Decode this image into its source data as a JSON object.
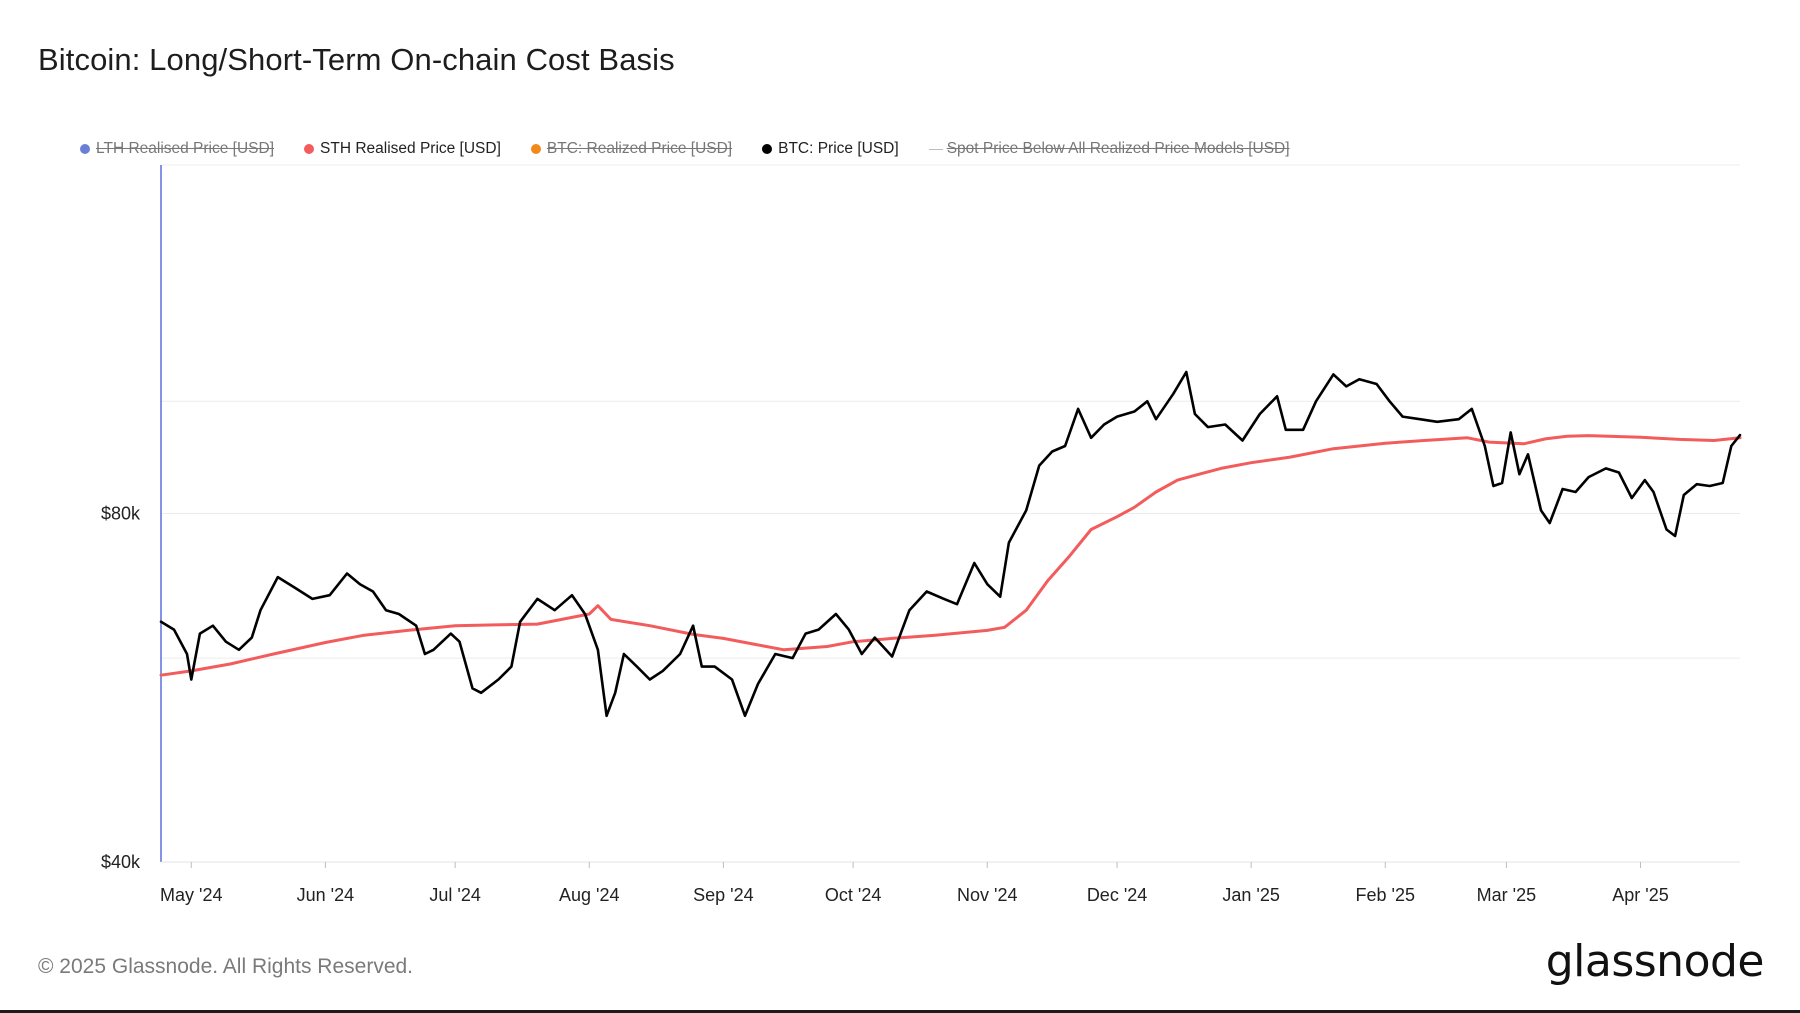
{
  "title": "Bitcoin: Long/Short-Term On-chain Cost Basis",
  "legend": [
    {
      "label": "LTH Realised Price [USD]",
      "color": "#6b7fd7",
      "marker": "dot",
      "hidden": true
    },
    {
      "label": "STH Realised Price [USD]",
      "color": "#f25c5c",
      "marker": "dot",
      "hidden": false
    },
    {
      "label": "BTC: Realized Price [USD]",
      "color": "#f08a18",
      "marker": "dot",
      "hidden": true
    },
    {
      "label": "BTC: Price [USD]",
      "color": "#000000",
      "marker": "dot",
      "hidden": false
    },
    {
      "label": "Spot Price Below All Realized Price Models [USD]",
      "color": "#bdbdbd",
      "marker": "line",
      "hidden": true
    }
  ],
  "footer": "© 2025 Glassnode. All Rights Reserved.",
  "brand": "glassnode",
  "chart_data": {
    "type": "line",
    "title": "Bitcoin: Long/Short-Term On-chain Cost Basis",
    "yscale": "log",
    "ylim": [
      40000,
      160000
    ],
    "y_ticks": [
      {
        "value": 40000,
        "label": "$40k"
      },
      {
        "value": 80000,
        "label": "$80k"
      }
    ],
    "x_range": [
      "2024-04-24",
      "2025-04-24"
    ],
    "x_ticks": [
      {
        "date": "2024-05-01",
        "label": "May '24"
      },
      {
        "date": "2024-06-01",
        "label": "Jun '24"
      },
      {
        "date": "2024-07-01",
        "label": "Jul '24"
      },
      {
        "date": "2024-08-01",
        "label": "Aug '24"
      },
      {
        "date": "2024-09-01",
        "label": "Sep '24"
      },
      {
        "date": "2024-10-01",
        "label": "Oct '24"
      },
      {
        "date": "2024-11-01",
        "label": "Nov '24"
      },
      {
        "date": "2024-12-01",
        "label": "Dec '24"
      },
      {
        "date": "2025-01-01",
        "label": "Jan '25"
      },
      {
        "date": "2025-02-01",
        "label": "Feb '25"
      },
      {
        "date": "2025-03-01",
        "label": "Mar '25"
      },
      {
        "date": "2025-04-01",
        "label": "Apr '25"
      }
    ],
    "grid": true,
    "legend_position": "top",
    "series": [
      {
        "name": "STH Realised Price [USD]",
        "color": "#f25c5c",
        "points": [
          [
            "2024-04-24",
            58000
          ],
          [
            "2024-05-01",
            58500
          ],
          [
            "2024-05-10",
            59300
          ],
          [
            "2024-05-20",
            60500
          ],
          [
            "2024-06-01",
            61900
          ],
          [
            "2024-06-10",
            62800
          ],
          [
            "2024-06-20",
            63400
          ],
          [
            "2024-07-01",
            64000
          ],
          [
            "2024-07-10",
            64100
          ],
          [
            "2024-07-20",
            64200
          ],
          [
            "2024-08-01",
            65500
          ],
          [
            "2024-08-03",
            66600
          ],
          [
            "2024-08-06",
            64800
          ],
          [
            "2024-08-15",
            64000
          ],
          [
            "2024-08-25",
            62900
          ],
          [
            "2024-09-01",
            62400
          ],
          [
            "2024-09-08",
            61700
          ],
          [
            "2024-09-15",
            61000
          ],
          [
            "2024-09-25",
            61400
          ],
          [
            "2024-10-01",
            62000
          ],
          [
            "2024-10-10",
            62400
          ],
          [
            "2024-10-20",
            62800
          ],
          [
            "2024-11-01",
            63400
          ],
          [
            "2024-11-05",
            63800
          ],
          [
            "2024-11-10",
            66000
          ],
          [
            "2024-11-15",
            70000
          ],
          [
            "2024-11-20",
            73500
          ],
          [
            "2024-11-25",
            77500
          ],
          [
            "2024-12-01",
            79500
          ],
          [
            "2024-12-05",
            81000
          ],
          [
            "2024-12-10",
            83500
          ],
          [
            "2024-12-15",
            85500
          ],
          [
            "2024-12-20",
            86500
          ],
          [
            "2024-12-25",
            87500
          ],
          [
            "2025-01-01",
            88500
          ],
          [
            "2025-01-10",
            89500
          ],
          [
            "2025-01-20",
            91000
          ],
          [
            "2025-02-01",
            92000
          ],
          [
            "2025-02-10",
            92500
          ],
          [
            "2025-02-20",
            93000
          ],
          [
            "2025-02-25",
            92200
          ],
          [
            "2025-03-05",
            91900
          ],
          [
            "2025-03-10",
            92800
          ],
          [
            "2025-03-15",
            93300
          ],
          [
            "2025-03-20",
            93400
          ],
          [
            "2025-04-01",
            93100
          ],
          [
            "2025-04-10",
            92700
          ],
          [
            "2025-04-18",
            92500
          ],
          [
            "2025-04-24",
            93000
          ]
        ]
      },
      {
        "name": "BTC: Price [USD]",
        "color": "#000000",
        "points": [
          [
            "2024-04-24",
            64500
          ],
          [
            "2024-04-27",
            63500
          ],
          [
            "2024-04-30",
            60500
          ],
          [
            "2024-05-01",
            57500
          ],
          [
            "2024-05-03",
            63000
          ],
          [
            "2024-05-06",
            64000
          ],
          [
            "2024-05-09",
            62000
          ],
          [
            "2024-05-12",
            61000
          ],
          [
            "2024-05-15",
            62500
          ],
          [
            "2024-05-17",
            66000
          ],
          [
            "2024-05-21",
            70500
          ],
          [
            "2024-05-25",
            69000
          ],
          [
            "2024-05-29",
            67500
          ],
          [
            "2024-06-02",
            68000
          ],
          [
            "2024-06-06",
            71000
          ],
          [
            "2024-06-09",
            69500
          ],
          [
            "2024-06-12",
            68500
          ],
          [
            "2024-06-15",
            66000
          ],
          [
            "2024-06-18",
            65500
          ],
          [
            "2024-06-22",
            64000
          ],
          [
            "2024-06-24",
            60500
          ],
          [
            "2024-06-26",
            61000
          ],
          [
            "2024-06-30",
            63000
          ],
          [
            "2024-07-02",
            62000
          ],
          [
            "2024-07-05",
            56500
          ],
          [
            "2024-07-07",
            56000
          ],
          [
            "2024-07-11",
            57500
          ],
          [
            "2024-07-14",
            59000
          ],
          [
            "2024-07-16",
            64500
          ],
          [
            "2024-07-20",
            67500
          ],
          [
            "2024-07-24",
            66000
          ],
          [
            "2024-07-28",
            68000
          ],
          [
            "2024-07-31",
            65500
          ],
          [
            "2024-08-03",
            61000
          ],
          [
            "2024-08-05",
            53500
          ],
          [
            "2024-08-07",
            56000
          ],
          [
            "2024-08-09",
            60500
          ],
          [
            "2024-08-12",
            59000
          ],
          [
            "2024-08-15",
            57500
          ],
          [
            "2024-08-18",
            58500
          ],
          [
            "2024-08-22",
            60500
          ],
          [
            "2024-08-25",
            64000
          ],
          [
            "2024-08-27",
            59000
          ],
          [
            "2024-08-30",
            59000
          ],
          [
            "2024-09-03",
            57500
          ],
          [
            "2024-09-06",
            53500
          ],
          [
            "2024-09-09",
            57000
          ],
          [
            "2024-09-13",
            60500
          ],
          [
            "2024-09-17",
            60000
          ],
          [
            "2024-09-20",
            63000
          ],
          [
            "2024-09-23",
            63500
          ],
          [
            "2024-09-27",
            65500
          ],
          [
            "2024-09-30",
            63500
          ],
          [
            "2024-10-03",
            60500
          ],
          [
            "2024-10-06",
            62500
          ],
          [
            "2024-10-10",
            60200
          ],
          [
            "2024-10-14",
            66000
          ],
          [
            "2024-10-18",
            68500
          ],
          [
            "2024-10-22",
            67500
          ],
          [
            "2024-10-25",
            66800
          ],
          [
            "2024-10-29",
            72500
          ],
          [
            "2024-11-01",
            69500
          ],
          [
            "2024-11-04",
            67800
          ],
          [
            "2024-11-06",
            75500
          ],
          [
            "2024-11-10",
            80500
          ],
          [
            "2024-11-13",
            88000
          ],
          [
            "2024-11-16",
            90500
          ],
          [
            "2024-11-19",
            91500
          ],
          [
            "2024-11-22",
            98500
          ],
          [
            "2024-11-25",
            93000
          ],
          [
            "2024-11-28",
            95500
          ],
          [
            "2024-12-01",
            97000
          ],
          [
            "2024-12-05",
            98000
          ],
          [
            "2024-12-08",
            100000
          ],
          [
            "2024-12-10",
            96500
          ],
          [
            "2024-12-14",
            101500
          ],
          [
            "2024-12-17",
            106000
          ],
          [
            "2024-12-19",
            97500
          ],
          [
            "2024-12-22",
            95000
          ],
          [
            "2024-12-26",
            95500
          ],
          [
            "2024-12-30",
            92500
          ],
          [
            "2025-01-03",
            97500
          ],
          [
            "2025-01-07",
            101000
          ],
          [
            "2025-01-09",
            94500
          ],
          [
            "2025-01-13",
            94500
          ],
          [
            "2025-01-16",
            100000
          ],
          [
            "2025-01-20",
            105500
          ],
          [
            "2025-01-23",
            103000
          ],
          [
            "2025-01-26",
            104500
          ],
          [
            "2025-01-30",
            103500
          ],
          [
            "2025-02-02",
            100000
          ],
          [
            "2025-02-05",
            97000
          ],
          [
            "2025-02-09",
            96500
          ],
          [
            "2025-02-13",
            96000
          ],
          [
            "2025-02-18",
            96500
          ],
          [
            "2025-02-21",
            98500
          ],
          [
            "2025-02-24",
            91500
          ],
          [
            "2025-02-26",
            84500
          ],
          [
            "2025-02-28",
            85000
          ],
          [
            "2025-03-02",
            94000
          ],
          [
            "2025-03-04",
            86500
          ],
          [
            "2025-03-06",
            90000
          ],
          [
            "2025-03-09",
            80500
          ],
          [
            "2025-03-11",
            78500
          ],
          [
            "2025-03-14",
            84000
          ],
          [
            "2025-03-17",
            83500
          ],
          [
            "2025-03-20",
            86000
          ],
          [
            "2025-03-24",
            87500
          ],
          [
            "2025-03-27",
            86800
          ],
          [
            "2025-03-30",
            82500
          ],
          [
            "2025-04-02",
            85500
          ],
          [
            "2025-04-04",
            83500
          ],
          [
            "2025-04-07",
            77500
          ],
          [
            "2025-04-09",
            76500
          ],
          [
            "2025-04-11",
            83000
          ],
          [
            "2025-04-14",
            84800
          ],
          [
            "2025-04-17",
            84500
          ],
          [
            "2025-04-20",
            85000
          ],
          [
            "2025-04-22",
            91500
          ],
          [
            "2025-04-24",
            93500
          ]
        ]
      }
    ]
  }
}
